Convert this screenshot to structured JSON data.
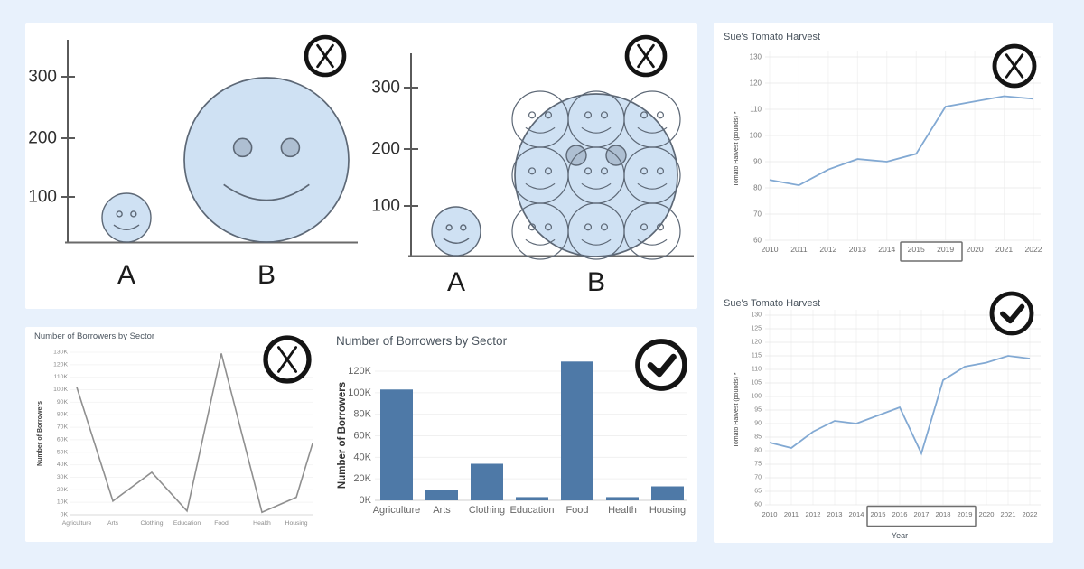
{
  "colors": {
    "page_bg": "#e8f1fc",
    "panel_bg": "#ffffff",
    "bar_fill": "#4e79a7",
    "tomato_line": "#82a9d3",
    "borrowers_line": "#8f8f8f",
    "smiley_fill": "#cfe1f3",
    "smiley_stroke": "#5d6876",
    "smiley_eye_fill": "#aebfd2",
    "mark_color": "#141414"
  },
  "chart_data": [
    {
      "id": "bubble_size_wrong",
      "type": "bubble",
      "yticks": [
        "300",
        "200",
        "100"
      ],
      "categories": [
        "A",
        "B"
      ],
      "values": [
        100,
        300
      ],
      "mark": "incorrect",
      "note": "B drawn with 3x the radius of A so its area reads as ~9x"
    },
    {
      "id": "bubble_size_units",
      "type": "bubble",
      "yticks": [
        "300",
        "200",
        "100"
      ],
      "categories": [
        "A",
        "B"
      ],
      "values": [
        100,
        300
      ],
      "mark": "incorrect",
      "note": "nine unit-sized smileys fit inside bubble B"
    },
    {
      "id": "borrowers_line",
      "type": "line",
      "title": "Number of Borrowers by Sector",
      "ylabel": "Number of Borrowers",
      "categories": [
        "Agriculture",
        "Arts",
        "Clothing",
        "Education",
        "Food",
        "Health",
        "Housing"
      ],
      "values_k": [
        102,
        11,
        34,
        3,
        129,
        2,
        14
      ],
      "edge_value_k": 57,
      "yticks": [
        "130K",
        "120K",
        "110K",
        "100K",
        "90K",
        "80K",
        "70K",
        "60K",
        "50K",
        "40K",
        "30K",
        "20K",
        "10K",
        "0K"
      ],
      "ylim_k": [
        0,
        130
      ],
      "mark": "incorrect"
    },
    {
      "id": "borrowers_bar",
      "type": "bar",
      "title": "Number of Borrowers by Sector",
      "ylabel": "Number of Borrowers",
      "categories": [
        "Agriculture",
        "Arts",
        "Clothing",
        "Education",
        "Food",
        "Health",
        "Housing"
      ],
      "values_k": [
        103,
        10,
        34,
        3,
        129,
        3,
        13
      ],
      "yticks": [
        "0K",
        "20K",
        "40K",
        "60K",
        "80K",
        "100K",
        "120K"
      ],
      "ylim_k": [
        0,
        130
      ],
      "mark": "correct"
    },
    {
      "id": "tomato_skipped_years",
      "type": "line",
      "title": "Sue's Tomato Harvest",
      "ylabel": "Tomato Harvest (pounds) *",
      "x": [
        "2010",
        "2011",
        "2012",
        "2013",
        "2014",
        "2015",
        "2019",
        "2020",
        "2021",
        "2022"
      ],
      "values": [
        83,
        81,
        87,
        91,
        90,
        93,
        111,
        113,
        115,
        114
      ],
      "yticks": [
        "130",
        "120",
        "110",
        "100",
        "90",
        "80",
        "70",
        "60"
      ],
      "ylim": [
        60,
        130
      ],
      "boxed_xticks": [
        "2015",
        "2019"
      ],
      "mark": "incorrect"
    },
    {
      "id": "tomato_all_years",
      "type": "line",
      "title": "Sue's Tomato Harvest",
      "xlabel": "Year",
      "ylabel": "Tomato Harvest (pounds) *",
      "x": [
        "2010",
        "2011",
        "2012",
        "2013",
        "2014",
        "2015",
        "2016",
        "2017",
        "2018",
        "2019",
        "2020",
        "2021",
        "2022"
      ],
      "values": [
        83,
        81,
        87,
        91,
        90,
        93,
        96,
        79,
        106,
        111,
        112.5,
        115,
        114
      ],
      "yticks": [
        "130",
        "125",
        "120",
        "115",
        "110",
        "105",
        "100",
        "95",
        "90",
        "85",
        "80",
        "75",
        "70",
        "65",
        "60"
      ],
      "ylim": [
        60,
        130
      ],
      "boxed_xticks": [
        "2015",
        "2016",
        "2017",
        "2018",
        "2019"
      ],
      "mark": "correct"
    }
  ]
}
